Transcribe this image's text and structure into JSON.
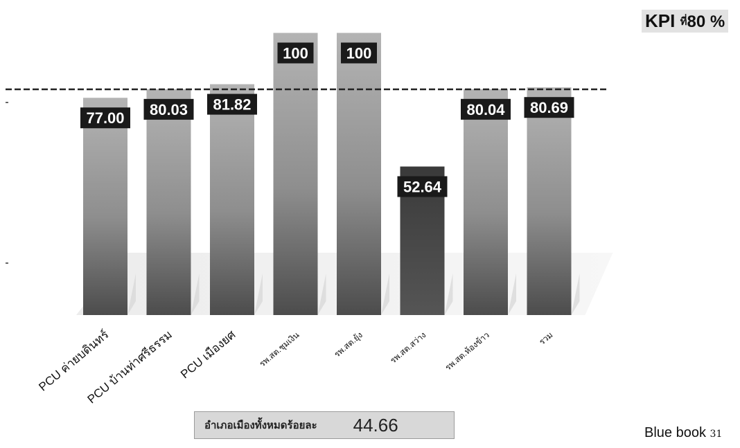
{
  "chart_data": {
    "type": "bar",
    "categories": [
      "PCU ค่ายบดินทร์",
      "PCU บ้านท่าศรีธรรม",
      "PCU เมืองยศ",
      "รพ.สต.ชุมเงิน",
      "รพ.สต.ยุ้ง",
      "รพ.สต.สว่าง",
      "รพ.สต.ห้องข้าว",
      "รวม"
    ],
    "values": [
      77.0,
      80.03,
      81.82,
      100,
      100,
      52.64,
      80.04,
      80.69
    ],
    "value_labels": [
      "77.00",
      "80.03",
      "81.82",
      "100",
      "100",
      "52.64",
      "80.04",
      "80.69"
    ],
    "target_line": 80,
    "ylim": [
      0,
      100
    ],
    "colors": {
      "bar_top": "#a8a8a8",
      "bar_bottom": "#4a4a4a",
      "bar_highlight_top": "#3c3c3c",
      "label_bg": "#1a1a1a",
      "label_text": "#ffffff",
      "target_line": "#222222"
    },
    "highlight_index": 5
  },
  "kpi": {
    "prefix": "KPI",
    "thai": "ที่",
    "value": "80 %"
  },
  "summary": {
    "label": "อำเภอเมืองทั้งหมดร้อยละ",
    "value": "44.66"
  },
  "footer": {
    "text": "Blue book",
    "page": "31"
  }
}
